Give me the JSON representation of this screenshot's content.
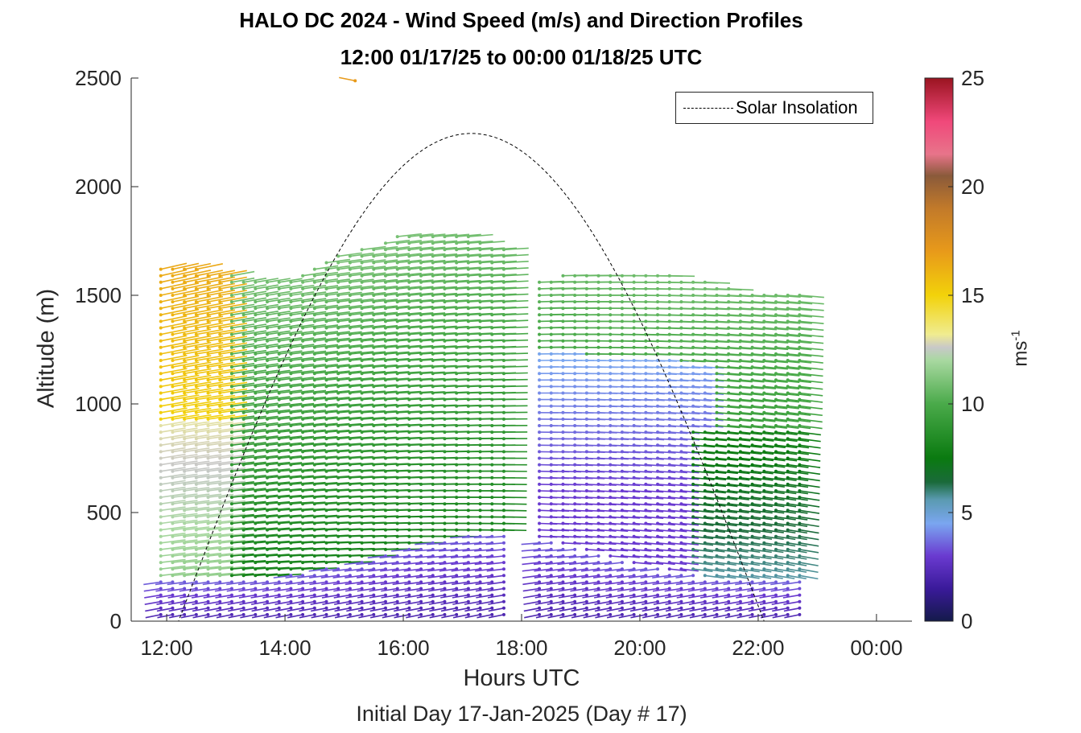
{
  "chart_data": {
    "type": "quiver",
    "title": "HALO DC 2024 - Wind Speed (m/s) and Direction Profiles",
    "subtitle": "12:00 01/17/25 to 00:00 01/18/25  UTC",
    "xlabel": "Hours UTC",
    "xsublabel": "Initial Day 17-Jan-2025 (Day # 17)",
    "ylabel": "Altitude (m)",
    "colorbar_label": "ms",
    "colorbar_label_exp": "-1",
    "x_ticks": [
      {
        "value": 12,
        "label": "12:00"
      },
      {
        "value": 14,
        "label": "14:00"
      },
      {
        "value": 16,
        "label": "16:00"
      },
      {
        "value": 18,
        "label": "18:00"
      },
      {
        "value": 20,
        "label": "20:00"
      },
      {
        "value": 22,
        "label": "22:00"
      },
      {
        "value": 24,
        "label": "00:00"
      }
    ],
    "xlim": [
      11.4,
      24.6
    ],
    "y_ticks": [
      0,
      500,
      1000,
      1500,
      2000,
      2500
    ],
    "ylim": [
      0,
      2500
    ],
    "colorbar": {
      "range": [
        0,
        25
      ],
      "ticks": [
        0,
        5,
        10,
        15,
        20,
        25
      ],
      "stops": [
        {
          "v": 0,
          "c": "#141a4a"
        },
        {
          "v": 1.5,
          "c": "#3a1a9a"
        },
        {
          "v": 3,
          "c": "#6a3ad0"
        },
        {
          "v": 4.5,
          "c": "#7aa6f0"
        },
        {
          "v": 5.6,
          "c": "#5a9ab0"
        },
        {
          "v": 6.4,
          "c": "#1a6a3a"
        },
        {
          "v": 7.5,
          "c": "#0a7a10"
        },
        {
          "v": 10,
          "c": "#4aaa4a"
        },
        {
          "v": 12,
          "c": "#a8d8a0"
        },
        {
          "v": 12.6,
          "c": "#c8c8c8"
        },
        {
          "v": 13.2,
          "c": "#f0ec90"
        },
        {
          "v": 15,
          "c": "#f2d20a"
        },
        {
          "v": 17,
          "c": "#e89a1a"
        },
        {
          "v": 19,
          "c": "#c27a2a"
        },
        {
          "v": 20.5,
          "c": "#8a5a3a"
        },
        {
          "v": 21.5,
          "c": "#e8748a"
        },
        {
          "v": 23,
          "c": "#f0487a"
        },
        {
          "v": 25,
          "c": "#9a1420"
        }
      ]
    },
    "legend": [
      {
        "label": "Solar Insolation",
        "style": "dashed",
        "color": "#000000",
        "position": "top-right"
      }
    ],
    "solar_insolation": {
      "sunrise_hr": 12.2,
      "sunset_hr": 22.1,
      "peak_altitude_equiv": 2245,
      "peak_hr": 17.15
    },
    "profiles_summary": {
      "time_start_hr": 11.9,
      "time_end_hr": 22.85,
      "time_step_hr": 0.2,
      "range_gate_m": 30,
      "note_top_altitudes": [
        {
          "hr": 12.0,
          "top": 1640
        },
        {
          "hr": 13.0,
          "top": 1600
        },
        {
          "hr": 14.0,
          "top": 1560
        },
        {
          "hr": 15.0,
          "top": 1700
        },
        {
          "hr": 16.0,
          "top": 1780
        },
        {
          "hr": 17.0,
          "top": 1790
        },
        {
          "hr": 17.8,
          "top": 1700
        },
        {
          "hr": 18.1,
          "top": 1580
        },
        {
          "hr": 19.0,
          "top": 1600
        },
        {
          "hr": 20.0,
          "top": 1610
        },
        {
          "hr": 21.0,
          "top": 1580
        },
        {
          "hr": 22.0,
          "top": 1500
        },
        {
          "hr": 22.85,
          "top": 1500
        }
      ],
      "isolated_point": {
        "hr": 15.05,
        "alt": 2495,
        "speed": 17
      }
    },
    "grid": false
  }
}
